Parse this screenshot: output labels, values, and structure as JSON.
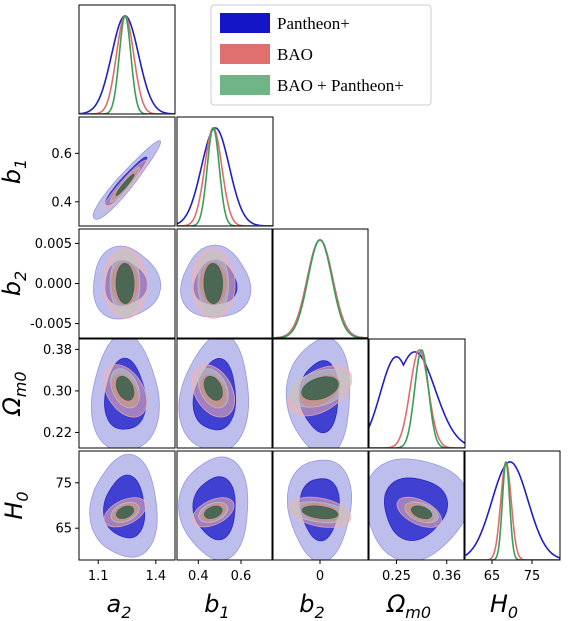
{
  "chart_data": {
    "type": "corner",
    "parameters": [
      {
        "key": "a2",
        "symbol": "a",
        "sub": "2",
        "range": [
          1.0,
          1.5
        ],
        "ticks": [
          "1.1",
          "1.4"
        ],
        "tick_values": [
          1.1,
          1.4
        ]
      },
      {
        "key": "b1",
        "symbol": "b",
        "sub": "1",
        "range": [
          0.3,
          0.75
        ],
        "ticks": [
          "0.4",
          "0.6"
        ],
        "tick_values": [
          0.4,
          0.6
        ]
      },
      {
        "key": "b2",
        "symbol": "b",
        "sub": "2",
        "range": [
          -0.0068,
          0.0068
        ],
        "ticks": [
          "0.005",
          "0.000",
          "-0.005"
        ],
        "tick_values": [
          0.005,
          0.0,
          -0.005
        ],
        "x_ticks": [
          "0"
        ],
        "x_tick_values": [
          0.0
        ]
      },
      {
        "key": "Om",
        "symbol": "Ω",
        "sub": "m0",
        "range": [
          0.19,
          0.4
        ],
        "ticks": [
          "0.38",
          "0.30",
          "0.22"
        ],
        "tick_values": [
          0.38,
          0.3,
          0.22
        ],
        "x_ticks": [
          "0.25",
          "0.36"
        ],
        "x_tick_values": [
          0.25,
          0.36
        ]
      },
      {
        "key": "H0",
        "symbol": "H",
        "sub": "0",
        "range": [
          58,
          82
        ],
        "ticks": [
          "75",
          "65"
        ],
        "tick_values": [
          75,
          65
        ],
        "x_ticks": [
          "65",
          "75"
        ],
        "x_tick_values": [
          65,
          75
        ]
      }
    ],
    "series": [
      {
        "name": "Pantheon+",
        "color": "#1f1fc8",
        "fill_inner": "#1515c8",
        "fill_outer": "#8888dd",
        "mean": {
          "a2": 1.24,
          "b1": 0.48,
          "b2": 0.0,
          "Om": 0.29,
          "H0": 69.5
        },
        "sigma": {
          "a2": 0.07,
          "b1": 0.065,
          "b2": 0.0018,
          "Om": 0.045,
          "H0": 4.5
        },
        "corr": {
          "b1|a2": 0.95,
          "b2|a2": 0.0,
          "b2|b1": 0.0,
          "Om|a2": 0.0,
          "Om|b1": 0.1,
          "Om|b2": 0.0,
          "H0|a2": 0.0,
          "H0|b1": 0.0,
          "H0|b2": 0.0,
          "H0|Om": 0.0
        }
      },
      {
        "name": "BAO",
        "color": "#e06d6d",
        "fill_inner": "#d94a4a",
        "fill_outer": "#f1b2b2",
        "mean": {
          "a2": 1.24,
          "b1": 0.47,
          "b2": 0.0,
          "Om": 0.3,
          "H0": 68.5
        },
        "sigma": {
          "a2": 0.045,
          "b1": 0.04,
          "b2": 0.0018,
          "Om": 0.02,
          "H0": 1.3
        },
        "corr": {
          "b1|a2": 0.95,
          "b2|a2": 0.0,
          "b2|b1": 0.0,
          "Om|a2": -0.35,
          "Om|b1": -0.3,
          "Om|b2": 0.5,
          "H0|a2": 0.5,
          "H0|b1": 0.5,
          "H0|b2": -0.3,
          "H0|Om": -0.5
        }
      },
      {
        "name": "BAO + Pantheon+",
        "color": "#3c9d55",
        "fill_inner": "#2f5c45",
        "fill_outer": "#b9c7bd",
        "mean": {
          "a2": 1.24,
          "b1": 0.47,
          "b2": 0.0,
          "Om": 0.305,
          "H0": 68.5
        },
        "sigma": {
          "a2": 0.03,
          "b1": 0.028,
          "b2": 0.0017,
          "Om": 0.015,
          "H0": 0.9
        },
        "corr": {
          "b1|a2": 0.95,
          "b2|a2": 0.0,
          "b2|b1": 0.0,
          "Om|a2": -0.3,
          "Om|b1": -0.3,
          "Om|b2": 0.4,
          "H0|a2": 0.4,
          "H0|b1": 0.4,
          "H0|b2": -0.3,
          "H0|Om": -0.4
        }
      }
    ],
    "legend": {
      "position": "top-right",
      "entries": [
        "Pantheon+",
        "BAO",
        "BAO + Pantheon+"
      ]
    }
  }
}
